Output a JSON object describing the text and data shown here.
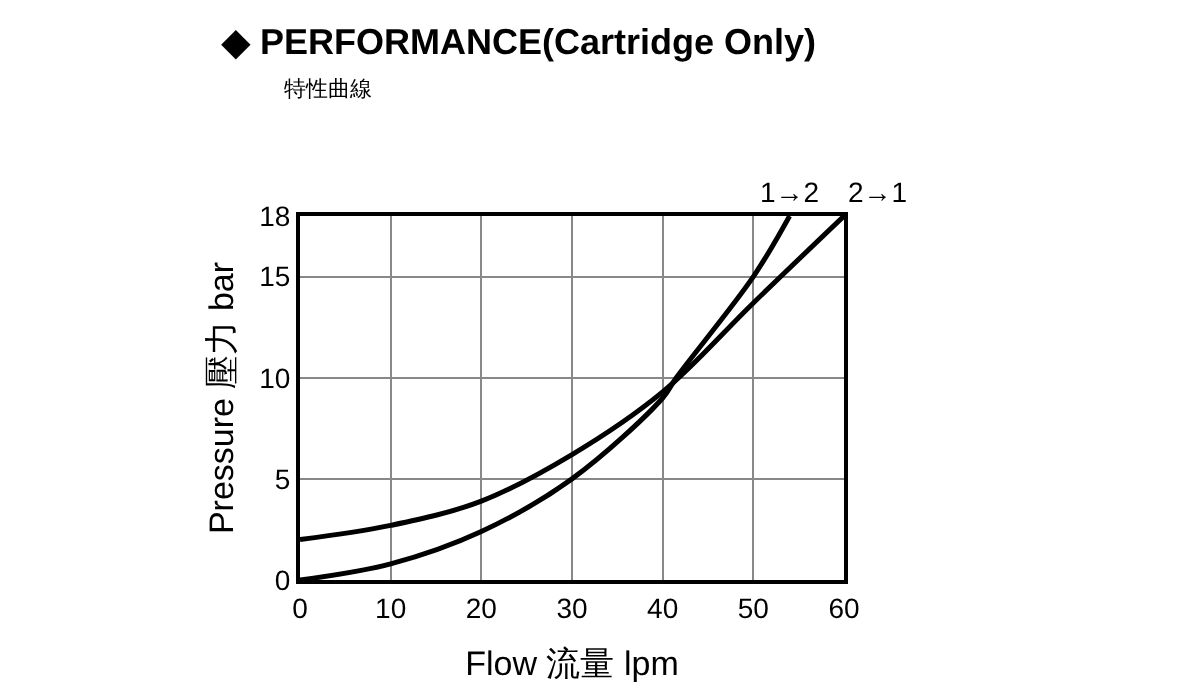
{
  "chart_data": {
    "type": "line",
    "title": "◆ PERFORMANCE(Cartridge Only)",
    "subtitle": "特性曲線",
    "xlabel": "Flow 流量 lpm",
    "ylabel": "Pressure 壓力 bar",
    "series": [
      {
        "name": "1→2",
        "color": "#000000",
        "x": [
          0,
          10,
          20,
          30,
          40,
          41.5,
          50,
          54
        ],
        "values": [
          0,
          0.8,
          2.4,
          5.0,
          9.0,
          10,
          15,
          18
        ]
      },
      {
        "name": "2→1",
        "color": "#000000",
        "x": [
          0,
          10,
          20,
          30,
          40,
          50,
          60
        ],
        "values": [
          2.0,
          2.7,
          3.9,
          6.2,
          9.3,
          13.7,
          18
        ]
      }
    ],
    "xlim": [
      0,
      60
    ],
    "xticks": [
      0,
      10,
      20,
      30,
      40,
      50,
      60
    ],
    "ylim": [
      0,
      18
    ],
    "yticks": [
      0,
      5,
      10,
      15,
      18
    ],
    "grid": true,
    "marker": "none",
    "line_style": "solid"
  }
}
